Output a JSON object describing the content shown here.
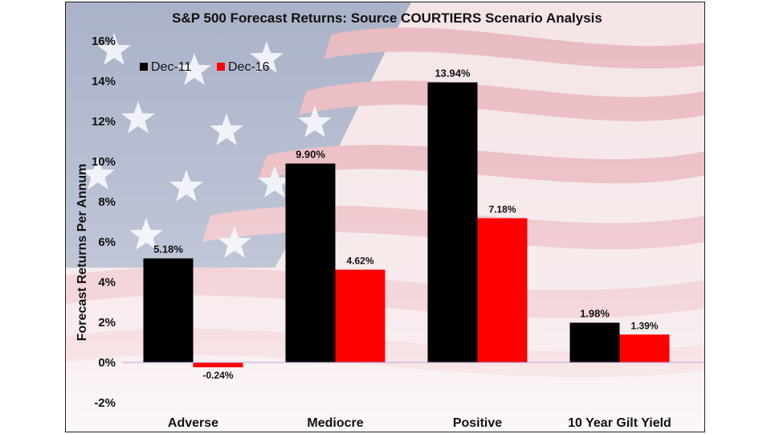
{
  "chart_data": {
    "type": "bar",
    "title": "S&P 500 Forecast Returns: Source COURTIERS Scenario Analysis",
    "ylabel": "Forecast Returns Per Annum",
    "xlabel": "",
    "categories": [
      "Adverse",
      "Mediocre",
      "Positive",
      "10 Year Gilt Yield"
    ],
    "series": [
      {
        "name": "Dec-11",
        "color": "#000000",
        "values": [
          5.18,
          9.9,
          13.94,
          1.98
        ],
        "labels": [
          "5.18%",
          "9.90%",
          "13.94%",
          "1.98%"
        ]
      },
      {
        "name": "Dec-16",
        "color": "#ff0000",
        "values": [
          -0.24,
          4.62,
          7.18,
          1.39
        ],
        "labels": [
          "-0.24%",
          "4.62%",
          "7.18%",
          "1.39%"
        ]
      }
    ],
    "ylim": [
      -2,
      16
    ],
    "yticks": [
      -2,
      0,
      2,
      4,
      6,
      8,
      10,
      12,
      14,
      16
    ],
    "ytick_labels": [
      "-2%",
      "0%",
      "2%",
      "4%",
      "6%",
      "8%",
      "10%",
      "12%",
      "14%",
      "16%"
    ],
    "legend_position": "top-left",
    "grid": false,
    "background": "American flag image"
  }
}
